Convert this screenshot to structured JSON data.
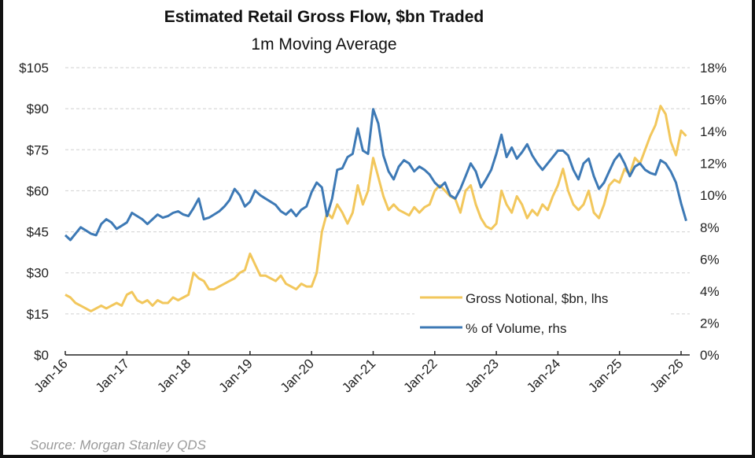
{
  "chart_data": {
    "type": "line",
    "title": "Estimated Retail Gross Flow, $bn Traded",
    "subtitle": "1m Moving Average",
    "source": "Source: Morgan Stanley QDS",
    "x_start": "2016-01",
    "x_frequency": "monthly",
    "x_tick_labels": [
      "Jan-16",
      "Jan-17",
      "Jan-18",
      "Jan-19",
      "Jan-20",
      "Jan-21",
      "Jan-22",
      "Jan-23",
      "Jan-24",
      "Jan-25",
      "Jan-26"
    ],
    "y_left": {
      "label": "",
      "ylim": [
        0,
        105
      ],
      "tick_labels": [
        "$0",
        "$15",
        "$30",
        "$45",
        "$60",
        "$75",
        "$90",
        "$105"
      ],
      "ticks": [
        0,
        15,
        30,
        45,
        60,
        75,
        90,
        105
      ]
    },
    "y_right": {
      "label": "",
      "ylim": [
        0,
        18
      ],
      "tick_labels": [
        "0%",
        "2%",
        "4%",
        "6%",
        "8%",
        "10%",
        "12%",
        "14%",
        "16%",
        "18%"
      ],
      "ticks": [
        0,
        2,
        4,
        6,
        8,
        10,
        12,
        14,
        16,
        18
      ]
    },
    "grid": true,
    "legend_placement": "bottom-right",
    "series": [
      {
        "name": "Gross Notional, $bn, lhs",
        "axis": "left",
        "color": "#F2C75C",
        "values": [
          22,
          21,
          19,
          18,
          17,
          16,
          17,
          18,
          17,
          18,
          19,
          18,
          22,
          23,
          20,
          19,
          20,
          18,
          20,
          19,
          19,
          21,
          20,
          21,
          22,
          30,
          28,
          27,
          24,
          24,
          25,
          26,
          27,
          28,
          30,
          31,
          37,
          33,
          29,
          29,
          28,
          27,
          29,
          26,
          25,
          24,
          26,
          25,
          25,
          30,
          45,
          52,
          50,
          55,
          52,
          48,
          52,
          62,
          55,
          60,
          72,
          65,
          58,
          53,
          55,
          53,
          52,
          51,
          54,
          52,
          54,
          55,
          60,
          62,
          60,
          58,
          57,
          52,
          60,
          62,
          55,
          50,
          47,
          46,
          48,
          60,
          55,
          52,
          58,
          55,
          50,
          53,
          51,
          55,
          53,
          58,
          62,
          68,
          60,
          55,
          53,
          55,
          60,
          52,
          50,
          55,
          62,
          64,
          63,
          68,
          66,
          72,
          70,
          75,
          80,
          84,
          91,
          88,
          78,
          73,
          82,
          80
        ]
      },
      {
        "name": "% of Volume, rhs",
        "axis": "right",
        "color": "#3D79B5",
        "values": [
          7.5,
          7.2,
          7.6,
          8.0,
          7.8,
          7.6,
          7.5,
          8.2,
          8.5,
          8.3,
          7.9,
          8.1,
          8.3,
          8.9,
          8.7,
          8.5,
          8.2,
          8.5,
          8.8,
          8.6,
          8.7,
          8.9,
          9.0,
          8.8,
          8.7,
          9.2,
          9.8,
          8.5,
          8.6,
          8.8,
          9.0,
          9.3,
          9.7,
          10.4,
          10.0,
          9.3,
          9.6,
          10.3,
          10.0,
          9.8,
          9.6,
          9.4,
          9.0,
          8.8,
          9.1,
          8.7,
          9.1,
          9.3,
          10.2,
          10.8,
          10.5,
          8.7,
          9.8,
          11.6,
          11.7,
          12.4,
          12.6,
          14.2,
          12.8,
          12.6,
          15.4,
          14.5,
          12.5,
          11.5,
          11.0,
          11.8,
          12.2,
          12.0,
          11.5,
          11.8,
          11.6,
          11.3,
          10.8,
          10.5,
          10.8,
          10.0,
          9.8,
          10.4,
          11.2,
          12.0,
          11.5,
          10.5,
          11.0,
          11.6,
          12.6,
          13.8,
          12.4,
          13.0,
          12.3,
          12.7,
          13.2,
          12.5,
          12.0,
          11.6,
          12.0,
          12.4,
          12.8,
          12.8,
          12.5,
          11.6,
          11.0,
          12.0,
          12.3,
          11.2,
          10.4,
          10.8,
          11.5,
          12.2,
          12.6,
          12.0,
          11.2,
          11.8,
          12.0,
          11.6,
          11.4,
          11.3,
          12.2,
          12.0,
          11.5,
          10.8,
          9.5,
          8.4
        ]
      }
    ]
  }
}
